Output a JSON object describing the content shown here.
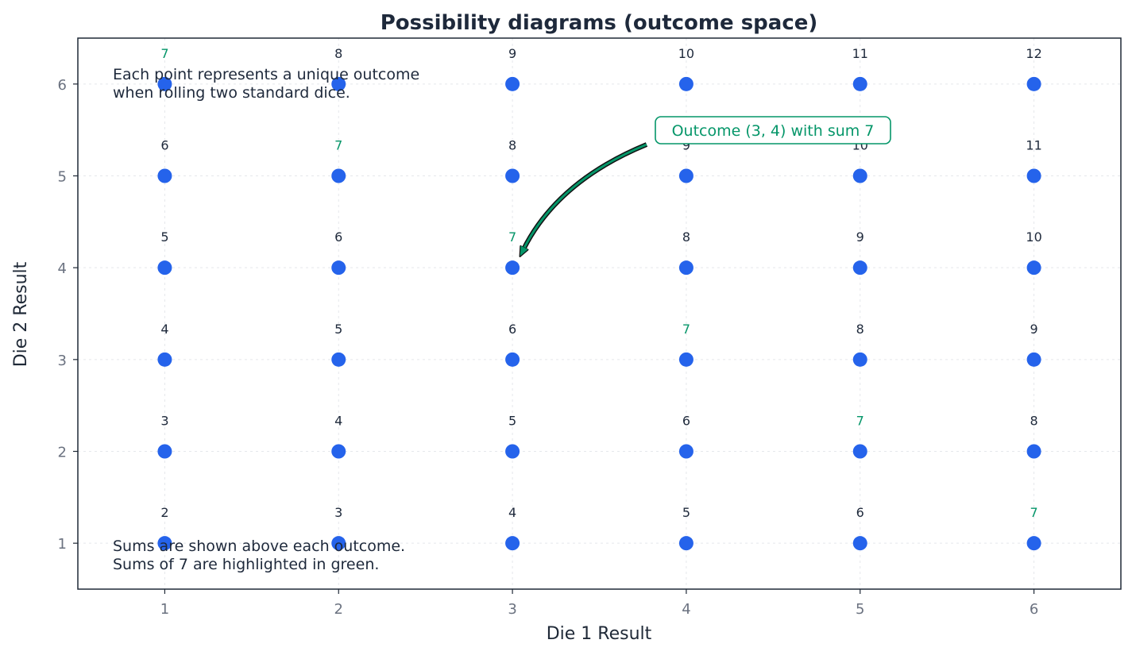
{
  "chart_data": {
    "type": "scatter",
    "title": "Possibility diagrams (outcome space)",
    "xlabel": "Die 1 Result",
    "ylabel": "Die 2 Result",
    "xlim": [
      0.5,
      6.5
    ],
    "ylim": [
      0.5,
      6.5
    ],
    "x_ticks": [
      "1",
      "2",
      "3",
      "4",
      "5",
      "6"
    ],
    "y_ticks": [
      "1",
      "2",
      "3",
      "4",
      "5",
      "6"
    ],
    "grid": true,
    "highlight_sum": 7,
    "point_color": "#2563eb",
    "label_color": "#1e293b",
    "highlight_color": "#059669",
    "points": [
      {
        "x": 1,
        "y": 1,
        "sum": "2"
      },
      {
        "x": 2,
        "y": 1,
        "sum": "3"
      },
      {
        "x": 3,
        "y": 1,
        "sum": "4"
      },
      {
        "x": 4,
        "y": 1,
        "sum": "5"
      },
      {
        "x": 5,
        "y": 1,
        "sum": "6"
      },
      {
        "x": 6,
        "y": 1,
        "sum": "7"
      },
      {
        "x": 1,
        "y": 2,
        "sum": "3"
      },
      {
        "x": 2,
        "y": 2,
        "sum": "4"
      },
      {
        "x": 3,
        "y": 2,
        "sum": "5"
      },
      {
        "x": 4,
        "y": 2,
        "sum": "6"
      },
      {
        "x": 5,
        "y": 2,
        "sum": "7"
      },
      {
        "x": 6,
        "y": 2,
        "sum": "8"
      },
      {
        "x": 1,
        "y": 3,
        "sum": "4"
      },
      {
        "x": 2,
        "y": 3,
        "sum": "5"
      },
      {
        "x": 3,
        "y": 3,
        "sum": "6"
      },
      {
        "x": 4,
        "y": 3,
        "sum": "7"
      },
      {
        "x": 5,
        "y": 3,
        "sum": "8"
      },
      {
        "x": 6,
        "y": 3,
        "sum": "9"
      },
      {
        "x": 1,
        "y": 4,
        "sum": "5"
      },
      {
        "x": 2,
        "y": 4,
        "sum": "6"
      },
      {
        "x": 3,
        "y": 4,
        "sum": "7"
      },
      {
        "x": 4,
        "y": 4,
        "sum": "8"
      },
      {
        "x": 5,
        "y": 4,
        "sum": "9"
      },
      {
        "x": 6,
        "y": 4,
        "sum": "10"
      },
      {
        "x": 1,
        "y": 5,
        "sum": "6"
      },
      {
        "x": 2,
        "y": 5,
        "sum": "7"
      },
      {
        "x": 3,
        "y": 5,
        "sum": "8"
      },
      {
        "x": 4,
        "y": 5,
        "sum": "9"
      },
      {
        "x": 5,
        "y": 5,
        "sum": "10"
      },
      {
        "x": 6,
        "y": 5,
        "sum": "11"
      },
      {
        "x": 1,
        "y": 6,
        "sum": "7"
      },
      {
        "x": 2,
        "y": 6,
        "sum": "8"
      },
      {
        "x": 3,
        "y": 6,
        "sum": "9"
      },
      {
        "x": 4,
        "y": 6,
        "sum": "10"
      },
      {
        "x": 5,
        "y": 6,
        "sum": "11"
      },
      {
        "x": 6,
        "y": 6,
        "sum": "12"
      }
    ],
    "annotations": {
      "callout": {
        "text": "Outcome (3, 4) with sum 7",
        "target_x": 3,
        "target_y": 4
      },
      "note_top": [
        "Each point represents a unique outcome",
        "when rolling two standard dice."
      ],
      "note_bottom": [
        "Sums are shown above each outcome.",
        "Sums of 7 are highlighted in green."
      ]
    }
  }
}
